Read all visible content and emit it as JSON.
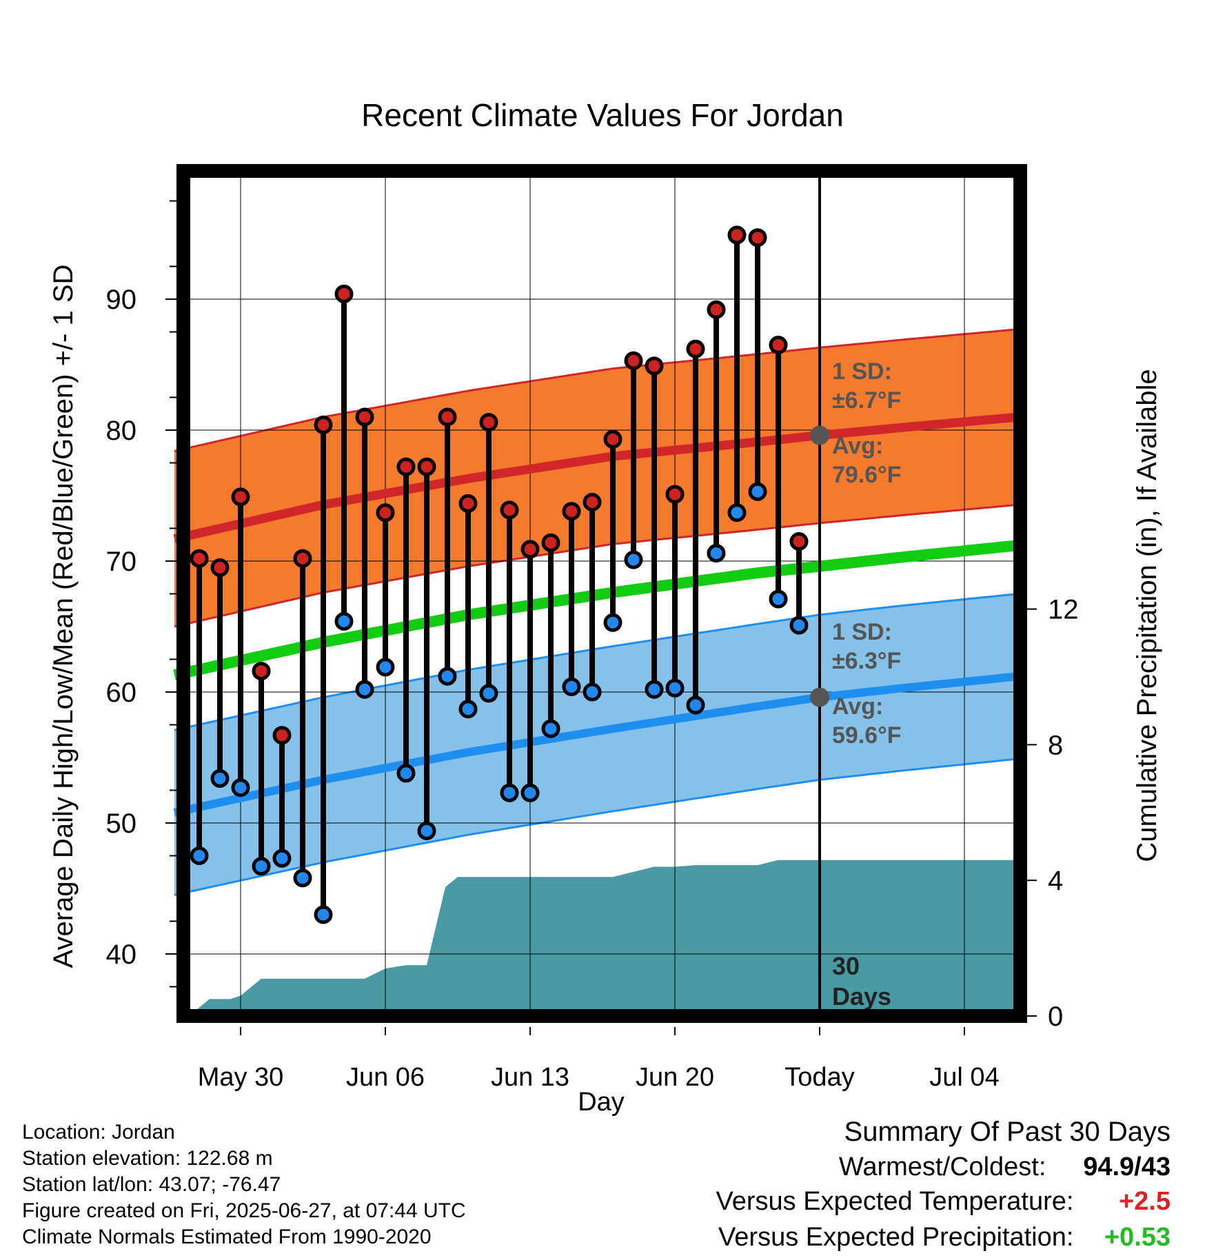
{
  "title": "Recent Climate Values For Jordan",
  "xlabel": "Day",
  "ylabel_left": "Average Daily High/Low/Mean (Red/Blue/Green) +/- 1 SD",
  "ylabel_right": "Cumulative Precipitation (in), If Available",
  "colors": {
    "high_point": "#cc2222",
    "low_point": "#2288ee",
    "high_band": "#f47a2e",
    "high_avg_line": "#d0262a",
    "low_band": "#85c1e9",
    "low_avg_line": "#1e8fef",
    "mean_line": "#11cc11",
    "precip": "#4a9aa3",
    "annotation": "#555555",
    "warm_text": "#dd2222",
    "precip_text": "#22bb22"
  },
  "chart_data": {
    "type": "line",
    "title": "Recent Climate Values For Jordan",
    "xlabel": "Day",
    "ylabel": "Average Daily High/Low/Mean (Red/Blue/Green) +/- 1 SD",
    "y2label": "Cumulative Precipitation (in), If Available",
    "ylim": [
      35.5,
      99
    ],
    "y2lim": [
      0,
      22
    ],
    "xlim_days": [
      -31.2,
      9.6
    ],
    "x_ticks": [
      {
        "day": -28,
        "label": "May 30"
      },
      {
        "day": -21,
        "label": "Jun 06"
      },
      {
        "day": -14,
        "label": "Jun 13"
      },
      {
        "day": -7,
        "label": "Jun 20"
      },
      {
        "day": 0,
        "label": "Today"
      },
      {
        "day": 7,
        "label": "Jul 04"
      }
    ],
    "y_ticks": [
      40,
      50,
      60,
      70,
      80,
      90
    ],
    "y2_ticks": [
      0,
      4,
      8,
      12
    ],
    "grid": true,
    "today_label": [
      "30",
      "Days"
    ],
    "daily": {
      "days": [
        -30,
        -29,
        -28,
        -27,
        -26,
        -25,
        -24,
        -23,
        -22,
        -21,
        -20,
        -19,
        -18,
        -17,
        -16,
        -15,
        -14,
        -13,
        -12,
        -11,
        -10,
        -9,
        -8,
        -7,
        -6,
        -5,
        -4,
        -3,
        -2,
        -1
      ],
      "high": [
        70.2,
        69.5,
        74.9,
        61.6,
        56.7,
        70.2,
        80.4,
        90.4,
        81.0,
        73.7,
        77.2,
        77.2,
        81.0,
        74.4,
        80.6,
        73.9,
        70.9,
        71.4,
        73.8,
        74.5,
        79.3,
        85.3,
        84.9,
        75.1,
        86.2,
        89.2,
        94.9,
        94.7,
        86.5,
        71.5
      ],
      "low": [
        47.5,
        53.4,
        52.7,
        46.7,
        47.3,
        45.8,
        43.0,
        65.4,
        60.2,
        61.9,
        53.8,
        49.4,
        61.2,
        58.7,
        59.9,
        52.3,
        52.3,
        57.2,
        60.4,
        60.0,
        65.3,
        70.1,
        60.2,
        60.3,
        59.0,
        70.6,
        73.7,
        75.3,
        67.1,
        65.1
      ]
    },
    "normals": {
      "days": [
        -31.2,
        -24,
        -17,
        -10,
        -3,
        0,
        4,
        9.6
      ],
      "high_avg": [
        71.7,
        74.3,
        76.3,
        78.0,
        79.1,
        79.6,
        80.2,
        81.0
      ],
      "low_avg": [
        50.8,
        53.3,
        55.4,
        57.2,
        58.9,
        59.6,
        60.3,
        61.2
      ],
      "mean_avg": [
        61.3,
        63.8,
        65.9,
        67.6,
        69.1,
        69.6,
        70.3,
        71.2
      ],
      "high_sd": 6.7,
      "low_sd": 6.3
    },
    "precip": {
      "days": [
        -30.5,
        -29.5,
        -28.5,
        -28,
        -27,
        -26,
        -25,
        -24,
        -23,
        -22,
        -21,
        -20,
        -19,
        -18.1,
        -17.5,
        -17,
        -16,
        -15,
        -14,
        -13,
        -12,
        -11,
        -10,
        -9,
        -8,
        -7,
        -6,
        -5,
        -4,
        -3,
        -2,
        -1,
        0,
        9.6
      ],
      "values": [
        0,
        0.5,
        0.5,
        0.6,
        1.1,
        1.1,
        1.1,
        1.1,
        1.1,
        1.1,
        1.4,
        1.5,
        1.5,
        3.8,
        4.1,
        4.1,
        4.1,
        4.1,
        4.1,
        4.1,
        4.1,
        4.1,
        4.1,
        4.25,
        4.4,
        4.4,
        4.45,
        4.45,
        4.45,
        4.45,
        4.6,
        4.6,
        4.6,
        4.6
      ]
    },
    "annotations": {
      "high_sd_label": [
        "1 SD:",
        "±6.7°F"
      ],
      "high_avg_label": [
        "Avg:",
        "79.6°F"
      ],
      "low_sd_label": [
        "1 SD:",
        "±6.3°F"
      ],
      "low_avg_label": [
        "Avg:",
        "59.6°F"
      ]
    }
  },
  "footer": {
    "location": "Location: Jordan",
    "elevation": "Station elevation: 122.68 m",
    "latlon": "Station lat/lon: 43.07; -76.47",
    "created": "Figure created on Fri, 2025-06-27, at 07:44 UTC",
    "normals": "Climate Normals Estimated From 1990-2020"
  },
  "summary": {
    "title": "Summary Of Past 30 Days",
    "warmest_coldest_label": "Warmest/Coldest:",
    "warmest_coldest_value": "94.9/43",
    "temp_label": "Versus Expected Temperature:",
    "temp_value": "+2.5",
    "precip_label": "Versus Expected Precipitation:",
    "precip_value": "+0.53"
  }
}
